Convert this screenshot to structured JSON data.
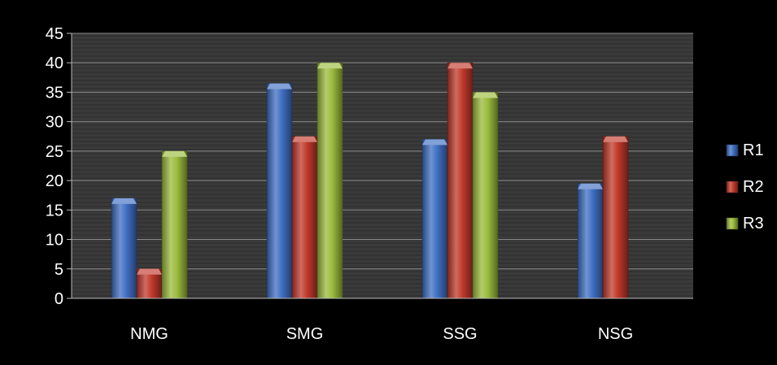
{
  "chart_data": {
    "type": "bar",
    "categories": [
      "NMG",
      "SMG",
      "SSG",
      "NSG"
    ],
    "series": [
      {
        "name": "R1",
        "color": "#3f6fc3",
        "values": [
          17,
          36.5,
          27,
          19.5
        ]
      },
      {
        "name": "R2",
        "color": "#c0392b",
        "values": [
          5,
          27.5,
          40,
          27.5
        ]
      },
      {
        "name": "R3",
        "color": "#9bbb3c",
        "values": [
          25,
          40,
          35,
          0
        ]
      }
    ],
    "ylim": [
      0,
      45
    ],
    "ytick_step": 5,
    "yticks": [
      "0",
      "5",
      "10",
      "15",
      "20",
      "25",
      "30",
      "35",
      "40",
      "45"
    ],
    "grid": true,
    "legend": "right",
    "background": "#000000",
    "plot_background": "#3a3a3a",
    "text_color": "#ffffff"
  }
}
